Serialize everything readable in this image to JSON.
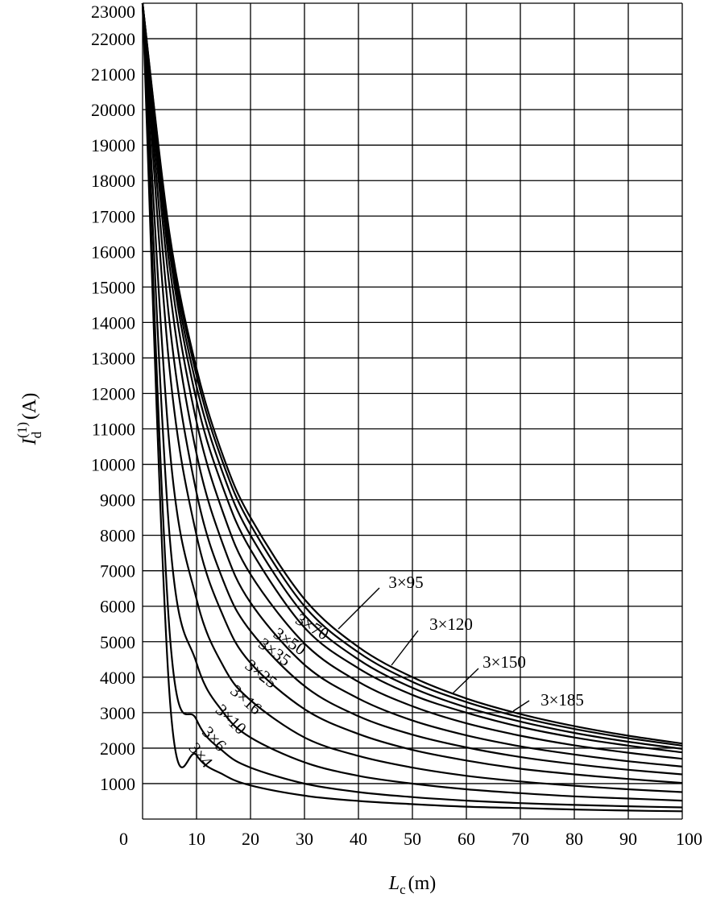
{
  "chart_data": {
    "type": "line",
    "title": "",
    "xlabel": {
      "symbol": "L",
      "subscript": "c",
      "unit": "(m)"
    },
    "ylabel": {
      "symbol": "I",
      "subscript": "d",
      "superscript": "(1)",
      "unit": "(A)"
    },
    "xlim": [
      0,
      100
    ],
    "ylim": [
      0,
      23000
    ],
    "grid": true,
    "x_ticks": [
      "0",
      "10",
      "20",
      "30",
      "40",
      "50",
      "60",
      "70",
      "80",
      "90",
      "100"
    ],
    "y_ticks": [
      "1000",
      "2000",
      "3000",
      "4000",
      "5000",
      "6000",
      "7000",
      "8000",
      "9000",
      "10000",
      "11000",
      "12000",
      "13000",
      "14000",
      "15000",
      "16000",
      "17000",
      "18000",
      "19000",
      "20000",
      "21000",
      "22000",
      "23000"
    ],
    "x": [
      0,
      5,
      10,
      15,
      20,
      30,
      40,
      50,
      60,
      70,
      80,
      90,
      100
    ],
    "series": [
      {
        "name": "3×4",
        "values": [
          23000,
          3500,
          1800,
          1250,
          950,
          660,
          510,
          420,
          350,
          310,
          270,
          240,
          220
        ]
      },
      {
        "name": "3×6",
        "values": [
          23000,
          5300,
          2800,
          1900,
          1450,
          1000,
          760,
          620,
          520,
          450,
          400,
          360,
          330
        ]
      },
      {
        "name": "3×10",
        "values": [
          23000,
          8000,
          4400,
          3000,
          2300,
          1600,
          1220,
          1000,
          840,
          730,
          640,
          580,
          520
        ]
      },
      {
        "name": "3×16",
        "values": [
          23000,
          10500,
          6200,
          4300,
          3350,
          2300,
          1780,
          1450,
          1220,
          1060,
          940,
          840,
          760
        ]
      },
      {
        "name": "3×25",
        "values": [
          23000,
          12700,
          8000,
          5700,
          4400,
          3100,
          2400,
          1950,
          1650,
          1420,
          1260,
          1130,
          1020
        ]
      },
      {
        "name": "3×35",
        "values": [
          23000,
          14000,
          9200,
          6700,
          5300,
          3750,
          2900,
          2380,
          2020,
          1750,
          1550,
          1390,
          1260
        ]
      },
      {
        "name": "3×50",
        "values": [
          23000,
          15000,
          10300,
          7700,
          6100,
          4350,
          3400,
          2780,
          2360,
          2050,
          1820,
          1630,
          1480
        ]
      },
      {
        "name": "3×70",
        "values": [
          23000,
          15600,
          11200,
          8600,
          6900,
          4950,
          3870,
          3180,
          2700,
          2350,
          2080,
          1870,
          1700
        ]
      },
      {
        "name": "3×95",
        "values": [
          23000,
          16000,
          11800,
          9300,
          7600,
          5400,
          4250,
          3500,
          3000,
          2600,
          2300,
          2070,
          1880
        ]
      },
      {
        "name": "3×120",
        "values": [
          23000,
          16200,
          12200,
          9700,
          8000,
          5750,
          4500,
          3700,
          3150,
          2750,
          2430,
          2180,
          1980
        ]
      },
      {
        "name": "3×150",
        "values": [
          23000,
          16400,
          12500,
          10000,
          8300,
          6000,
          4700,
          3870,
          3300,
          2870,
          2540,
          2280,
          2070
        ]
      },
      {
        "name": "3×185",
        "values": [
          23000,
          16500,
          12700,
          10200,
          8500,
          6200,
          4850,
          4000,
          3400,
          2960,
          2620,
          2350,
          2130
        ]
      }
    ]
  }
}
